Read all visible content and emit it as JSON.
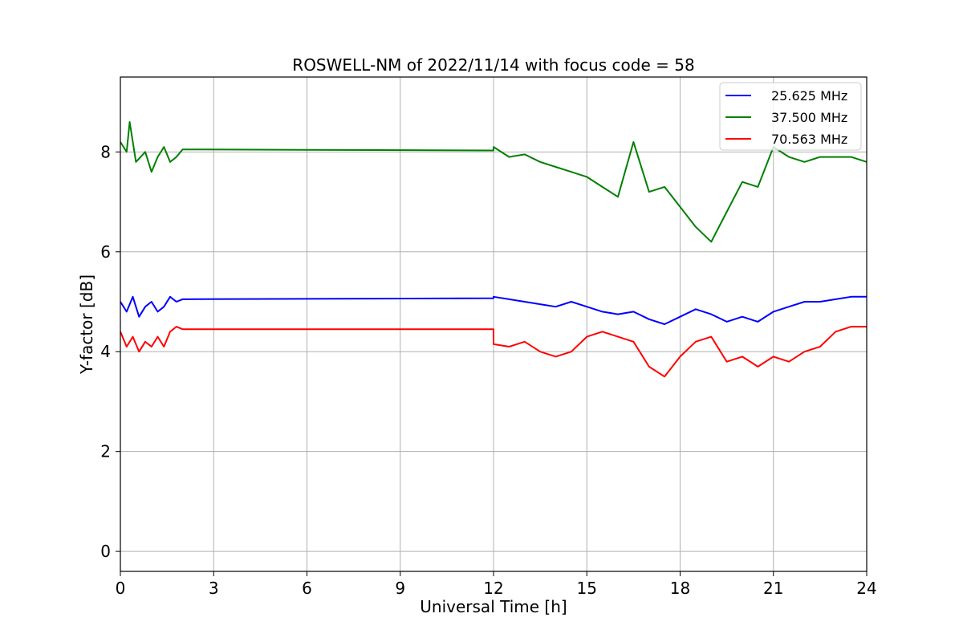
{
  "chart_data": {
    "type": "line",
    "title": "ROSWELL-NM of 2022/11/14 with focus code = 58",
    "xlabel": "Universal Time [h]",
    "ylabel": "Y-factor [dB]",
    "xlim": [
      0,
      24
    ],
    "ylim": [
      -0.4,
      9.5
    ],
    "xticks": [
      0,
      3,
      6,
      9,
      12,
      15,
      18,
      21,
      24
    ],
    "yticks": [
      0,
      2,
      4,
      6,
      8
    ],
    "grid": true,
    "legend_position": "top-right",
    "series": [
      {
        "name": "25.625 MHz",
        "color": "#0000ff",
        "points": [
          [
            0,
            5.0
          ],
          [
            0.2,
            4.8
          ],
          [
            0.4,
            5.1
          ],
          [
            0.6,
            4.7
          ],
          [
            0.8,
            4.9
          ],
          [
            1.0,
            5.0
          ],
          [
            1.2,
            4.8
          ],
          [
            1.4,
            4.9
          ],
          [
            1.6,
            5.1
          ],
          [
            1.8,
            5.0
          ],
          [
            2.0,
            5.05
          ],
          [
            12.0,
            5.07
          ],
          [
            12.0,
            5.1
          ],
          [
            12.5,
            5.05
          ],
          [
            13.0,
            5.0
          ],
          [
            13.5,
            4.95
          ],
          [
            14.0,
            4.9
          ],
          [
            14.5,
            5.0
          ],
          [
            15.0,
            4.9
          ],
          [
            15.5,
            4.8
          ],
          [
            16.0,
            4.75
          ],
          [
            16.5,
            4.8
          ],
          [
            17.0,
            4.65
          ],
          [
            17.5,
            4.55
          ],
          [
            18.0,
            4.7
          ],
          [
            18.5,
            4.85
          ],
          [
            19.0,
            4.75
          ],
          [
            19.5,
            4.6
          ],
          [
            20.0,
            4.7
          ],
          [
            20.5,
            4.6
          ],
          [
            21.0,
            4.8
          ],
          [
            21.5,
            4.9
          ],
          [
            22.0,
            5.0
          ],
          [
            22.5,
            5.0
          ],
          [
            23.0,
            5.05
          ],
          [
            23.5,
            5.1
          ],
          [
            24.0,
            5.1
          ]
        ]
      },
      {
        "name": "37.500 MHz",
        "color": "#008000",
        "points": [
          [
            0,
            8.2
          ],
          [
            0.2,
            8.0
          ],
          [
            0.3,
            8.6
          ],
          [
            0.5,
            7.8
          ],
          [
            0.8,
            8.0
          ],
          [
            1.0,
            7.6
          ],
          [
            1.2,
            7.9
          ],
          [
            1.4,
            8.1
          ],
          [
            1.6,
            7.8
          ],
          [
            1.8,
            7.9
          ],
          [
            2.0,
            8.05
          ],
          [
            12.0,
            8.03
          ],
          [
            12.0,
            8.1
          ],
          [
            12.5,
            7.9
          ],
          [
            13.0,
            7.95
          ],
          [
            13.5,
            7.8
          ],
          [
            14.0,
            7.7
          ],
          [
            14.5,
            7.6
          ],
          [
            15.0,
            7.5
          ],
          [
            15.5,
            7.3
          ],
          [
            16.0,
            7.1
          ],
          [
            16.5,
            8.2
          ],
          [
            17.0,
            7.2
          ],
          [
            17.5,
            7.3
          ],
          [
            18.0,
            6.9
          ],
          [
            18.5,
            6.5
          ],
          [
            19.0,
            6.2
          ],
          [
            19.5,
            6.8
          ],
          [
            20.0,
            7.4
          ],
          [
            20.5,
            7.3
          ],
          [
            21.0,
            8.1
          ],
          [
            21.5,
            7.9
          ],
          [
            22.0,
            7.8
          ],
          [
            22.5,
            7.9
          ],
          [
            23.0,
            7.9
          ],
          [
            23.5,
            7.9
          ],
          [
            24.0,
            7.8
          ]
        ]
      },
      {
        "name": "70.563 MHz",
        "color": "#ff0000",
        "points": [
          [
            0,
            4.4
          ],
          [
            0.2,
            4.1
          ],
          [
            0.4,
            4.3
          ],
          [
            0.6,
            4.0
          ],
          [
            0.8,
            4.2
          ],
          [
            1.0,
            4.1
          ],
          [
            1.2,
            4.3
          ],
          [
            1.4,
            4.1
          ],
          [
            1.6,
            4.4
          ],
          [
            1.8,
            4.5
          ],
          [
            2.0,
            4.45
          ],
          [
            12.0,
            4.45
          ],
          [
            12.0,
            4.15
          ],
          [
            12.5,
            4.1
          ],
          [
            13.0,
            4.2
          ],
          [
            13.5,
            4.0
          ],
          [
            14.0,
            3.9
          ],
          [
            14.5,
            4.0
          ],
          [
            15.0,
            4.3
          ],
          [
            15.5,
            4.4
          ],
          [
            16.0,
            4.3
          ],
          [
            16.5,
            4.2
          ],
          [
            17.0,
            3.7
          ],
          [
            17.5,
            3.5
          ],
          [
            18.0,
            3.9
          ],
          [
            18.5,
            4.2
          ],
          [
            19.0,
            4.3
          ],
          [
            19.5,
            3.8
          ],
          [
            20.0,
            3.9
          ],
          [
            20.5,
            3.7
          ],
          [
            21.0,
            3.9
          ],
          [
            21.5,
            3.8
          ],
          [
            22.0,
            4.0
          ],
          [
            22.5,
            4.1
          ],
          [
            23.0,
            4.4
          ],
          [
            23.5,
            4.5
          ],
          [
            24.0,
            4.5
          ]
        ]
      }
    ]
  }
}
